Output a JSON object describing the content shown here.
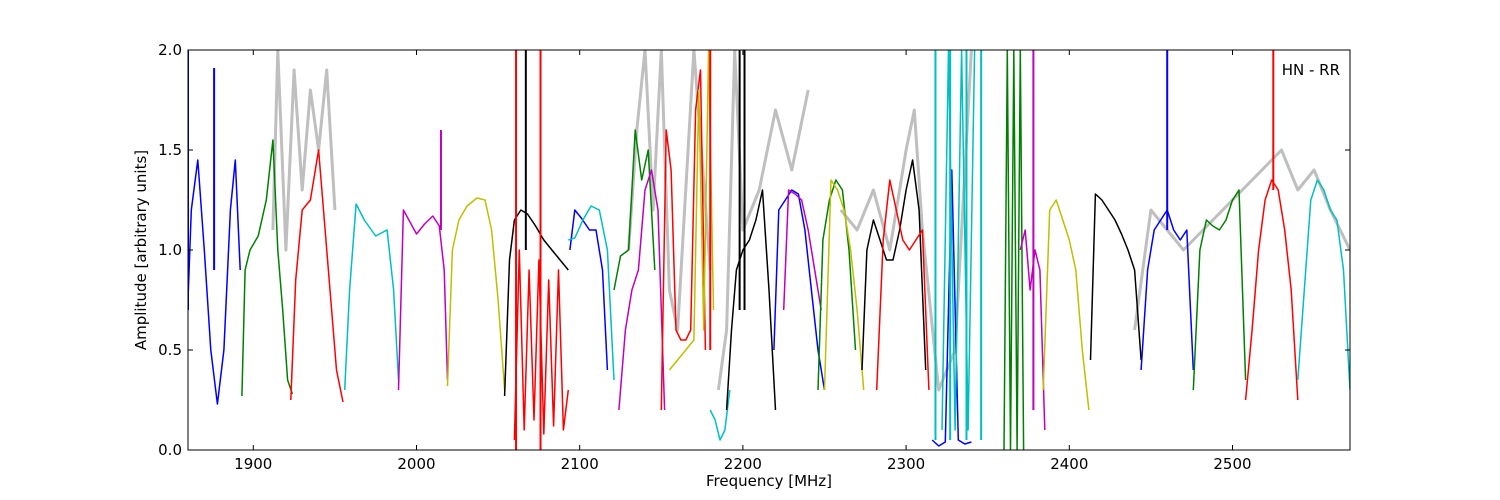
{
  "chart_data": {
    "type": "line",
    "xlabel": "Frequency [MHz]",
    "ylabel": "Amplitude [arbitrary units]",
    "annotation": "HN - RR",
    "xlim": [
      1860,
      2572
    ],
    "ylim": [
      0,
      2.0
    ],
    "grid": false,
    "x_ticks": [
      1900,
      2000,
      2100,
      2200,
      2300,
      2400,
      2500
    ],
    "y_ticks": [
      0.0,
      0.5,
      1.0,
      1.5,
      2.0
    ],
    "x_tick_labels": [
      "1900",
      "2000",
      "2100",
      "2200",
      "2300",
      "2400",
      "2500"
    ],
    "y_tick_labels": [
      "0.0",
      "0.5",
      "1.0",
      "1.5",
      "2.0"
    ],
    "colors": {
      "reference": "#bfbfbf",
      "blue": "#0000ff",
      "green": "#008000",
      "red": "#ff0000",
      "cyan": "#00bfbf",
      "magenta": "#bf00bf",
      "olive": "#bfbf00",
      "black": "#000000"
    },
    "series": [
      {
        "color": "reference",
        "x": [
          1912,
          1915,
          1920,
          1925,
          1930,
          1935,
          1940,
          1945,
          1950
        ],
        "y": [
          1.1,
          2.0,
          1.0,
          1.9,
          1.3,
          1.8,
          1.5,
          1.9,
          1.2
        ]
      },
      {
        "color": "reference",
        "x": [
          2130,
          2135,
          2140,
          2145,
          2150,
          2155,
          2160,
          2170,
          2180
        ],
        "y": [
          1.0,
          1.6,
          2.0,
          1.2,
          2.0,
          0.8,
          0.6,
          2.0,
          0.9
        ]
      },
      {
        "color": "reference",
        "x": [
          2185,
          2190,
          2195,
          2200,
          2210,
          2220,
          2230,
          2240
        ],
        "y": [
          0.3,
          0.6,
          2.0,
          1.1,
          1.3,
          1.7,
          1.4,
          1.8
        ]
      },
      {
        "color": "reference",
        "x": [
          2260,
          2270,
          2280,
          2290,
          2300,
          2305,
          2310,
          2320,
          2330,
          2340
        ],
        "y": [
          1.2,
          1.1,
          1.3,
          1.0,
          1.5,
          1.7,
          1.1,
          0.3,
          0.5,
          2.0
        ]
      },
      {
        "color": "reference",
        "x": [
          2440,
          2450,
          2460,
          2470,
          2530,
          2540,
          2550,
          2560,
          2572
        ],
        "y": [
          0.6,
          1.2,
          1.1,
          1.0,
          1.5,
          1.3,
          1.4,
          1.2,
          1.0
        ]
      },
      {
        "color": "blue",
        "x": [
          1860,
          1862,
          1866,
          1870,
          1874,
          1878,
          1882,
          1886,
          1889,
          1892
        ],
        "y": [
          0.75,
          1.2,
          1.45,
          1.0,
          0.5,
          0.23,
          0.5,
          1.2,
          1.45,
          0.9
        ]
      },
      {
        "color": "green",
        "x": [
          1893,
          1895,
          1898,
          1903,
          1908,
          1912,
          1915,
          1918,
          1921,
          1924
        ],
        "y": [
          0.27,
          0.9,
          1.0,
          1.07,
          1.25,
          1.55,
          1.0,
          0.7,
          0.35,
          0.28
        ]
      },
      {
        "color": "red",
        "x": [
          1923,
          1926,
          1930,
          1935,
          1940,
          1943,
          1947,
          1951,
          1955
        ],
        "y": [
          0.25,
          0.85,
          1.2,
          1.25,
          1.5,
          1.2,
          0.8,
          0.4,
          0.24
        ]
      },
      {
        "color": "cyan",
        "x": [
          1956,
          1959,
          1963,
          1968,
          1975,
          1982,
          1986,
          1989
        ],
        "y": [
          0.3,
          0.8,
          1.23,
          1.15,
          1.07,
          1.1,
          0.8,
          0.35
        ]
      },
      {
        "color": "magenta",
        "x": [
          1989,
          1992,
          1996,
          2000,
          2005,
          2010,
          2014,
          2017,
          2019
        ],
        "y": [
          0.3,
          1.2,
          1.14,
          1.08,
          1.13,
          1.17,
          1.12,
          0.9,
          0.35
        ]
      },
      {
        "color": "olive",
        "x": [
          2019,
          2022,
          2026,
          2031,
          2037,
          2042,
          2046,
          2050,
          2054
        ],
        "y": [
          0.32,
          1.0,
          1.15,
          1.22,
          1.26,
          1.25,
          1.1,
          0.75,
          0.3
        ]
      },
      {
        "color": "black",
        "x": [
          2054,
          2057,
          2060,
          2064,
          2068,
          2073,
          2078,
          2083,
          2088,
          2093
        ],
        "y": [
          0.27,
          0.95,
          1.15,
          1.2,
          1.18,
          1.12,
          1.05,
          1.0,
          0.95,
          0.9
        ]
      },
      {
        "color": "red",
        "x": [
          2060,
          2063,
          2066,
          2069,
          2072,
          2075,
          2078,
          2081,
          2084,
          2087,
          2090,
          2093
        ],
        "y": [
          0.05,
          1.0,
          0.1,
          0.9,
          0.15,
          0.95,
          0.08,
          0.85,
          0.12,
          0.9,
          0.1,
          0.3
        ]
      },
      {
        "color": "blue",
        "x": [
          2094,
          2097,
          2101,
          2106,
          2110,
          2114,
          2117
        ],
        "y": [
          1.0,
          1.2,
          1.16,
          1.1,
          1.1,
          0.9,
          0.4
        ]
      },
      {
        "color": "cyan",
        "x": [
          2093,
          2097,
          2102,
          2107,
          2112,
          2117,
          2121
        ],
        "y": [
          1.05,
          1.06,
          1.15,
          1.22,
          1.2,
          1.0,
          0.35
        ]
      },
      {
        "color": "green",
        "x": [
          2121,
          2125,
          2130,
          2134,
          2138,
          2142,
          2146
        ],
        "y": [
          0.8,
          0.97,
          1.0,
          1.6,
          1.35,
          1.5,
          0.9
        ]
      },
      {
        "color": "magenta",
        "x": [
          2124,
          2128,
          2132,
          2136,
          2140,
          2144,
          2148,
          2152
        ],
        "y": [
          0.2,
          0.6,
          0.8,
          0.9,
          1.3,
          1.4,
          1.2,
          0.2
        ]
      },
      {
        "color": "red",
        "x": [
          2150,
          2153,
          2156,
          2159,
          2162,
          2165,
          2168,
          2171,
          2174,
          2177
        ],
        "y": [
          0.2,
          1.6,
          1.4,
          0.6,
          0.55,
          0.55,
          0.6,
          1.7,
          1.9,
          0.5
        ]
      },
      {
        "color": "olive",
        "x": [
          2155,
          2160,
          2165,
          2170,
          2173,
          2176,
          2179,
          2182
        ],
        "y": [
          0.4,
          0.45,
          0.5,
          0.55,
          1.8,
          0.6,
          2.0,
          0.7
        ]
      },
      {
        "color": "cyan",
        "x": [
          2180,
          2183,
          2186,
          2189,
          2192
        ],
        "y": [
          0.2,
          0.15,
          0.05,
          0.1,
          0.3
        ]
      },
      {
        "color": "black",
        "x": [
          2190,
          2193,
          2196,
          2200,
          2204,
          2208,
          2212,
          2216,
          2220
        ],
        "y": [
          0.2,
          0.6,
          0.9,
          1.0,
          1.05,
          1.15,
          1.3,
          0.8,
          0.2
        ]
      },
      {
        "color": "blue",
        "x": [
          2219,
          2222,
          2226,
          2230,
          2234,
          2238,
          2242,
          2246,
          2250
        ],
        "y": [
          0.5,
          1.2,
          1.25,
          1.3,
          1.28,
          1.1,
          0.8,
          0.5,
          0.3
        ]
      },
      {
        "color": "magenta",
        "x": [
          2225,
          2228,
          2232,
          2236,
          2240,
          2244,
          2248
        ],
        "y": [
          0.7,
          1.3,
          1.28,
          1.25,
          1.1,
          0.9,
          0.7
        ]
      },
      {
        "color": "green",
        "x": [
          2246,
          2249,
          2253,
          2257,
          2261,
          2265,
          2269
        ],
        "y": [
          0.3,
          1.05,
          1.25,
          1.35,
          1.3,
          1.0,
          0.5
        ]
      },
      {
        "color": "olive",
        "x": [
          2250,
          2254,
          2258,
          2262,
          2266,
          2270,
          2274
        ],
        "y": [
          0.3,
          1.35,
          1.3,
          1.2,
          1.0,
          0.7,
          0.3
        ]
      },
      {
        "color": "black",
        "x": [
          2273,
          2276,
          2280,
          2284,
          2288,
          2292,
          2296,
          2300,
          2304,
          2308,
          2312
        ],
        "y": [
          0.4,
          1.0,
          1.15,
          1.05,
          0.95,
          0.95,
          1.1,
          1.3,
          1.45,
          1.2,
          0.4
        ]
      },
      {
        "color": "red",
        "x": [
          2282,
          2286,
          2290,
          2294,
          2298,
          2302,
          2306,
          2310,
          2314
        ],
        "y": [
          0.3,
          1.05,
          1.35,
          1.2,
          1.05,
          1.0,
          1.05,
          1.1,
          0.3
        ]
      },
      {
        "color": "blue",
        "x": [
          2316,
          2320,
          2324,
          2328,
          2332,
          2336,
          2340
        ],
        "y": [
          0.05,
          0.02,
          0.04,
          1.4,
          0.05,
          0.03,
          0.04
        ]
      },
      {
        "color": "cyan",
        "x": [
          2322,
          2326,
          2330,
          2334,
          2338,
          2342
        ],
        "y": [
          0.1,
          2.0,
          0.1,
          2.0,
          0.1,
          2.0
        ]
      },
      {
        "color": "green",
        "x": [
          2360,
          2362,
          2364,
          2366,
          2368,
          2370,
          2372
        ],
        "y": [
          0.0,
          2.0,
          0.0,
          2.0,
          0.0,
          2.0,
          0.0
        ]
      },
      {
        "color": "magenta",
        "x": [
          2370,
          2373,
          2376,
          2379,
          2382,
          2385
        ],
        "y": [
          1.0,
          1.1,
          0.8,
          1.0,
          0.9,
          0.1
        ]
      },
      {
        "color": "olive",
        "x": [
          2384,
          2388,
          2392,
          2396,
          2400,
          2404,
          2408,
          2412
        ],
        "y": [
          0.3,
          1.2,
          1.25,
          1.15,
          1.05,
          0.9,
          0.5,
          0.2
        ]
      },
      {
        "color": "black",
        "x": [
          2413,
          2416,
          2420,
          2424,
          2428,
          2432,
          2436,
          2440,
          2444
        ],
        "y": [
          0.45,
          1.28,
          1.25,
          1.2,
          1.15,
          1.08,
          1.0,
          0.9,
          0.45
        ]
      },
      {
        "color": "blue",
        "x": [
          2444,
          2448,
          2452,
          2456,
          2460,
          2464,
          2468,
          2472,
          2476
        ],
        "y": [
          0.4,
          0.9,
          1.1,
          1.15,
          1.2,
          1.1,
          1.05,
          1.1,
          0.4
        ]
      },
      {
        "color": "green",
        "x": [
          2476,
          2480,
          2484,
          2488,
          2492,
          2496,
          2500,
          2504,
          2508
        ],
        "y": [
          0.3,
          1.0,
          1.15,
          1.12,
          1.1,
          1.15,
          1.25,
          1.3,
          0.35
        ]
      },
      {
        "color": "red",
        "x": [
          2508,
          2512,
          2516,
          2520,
          2524,
          2528,
          2532,
          2536,
          2540
        ],
        "y": [
          0.25,
          0.6,
          1.0,
          1.25,
          1.35,
          1.3,
          1.1,
          0.8,
          0.25
        ]
      },
      {
        "color": "cyan",
        "x": [
          2540,
          2544,
          2548,
          2552,
          2556,
          2560,
          2564,
          2568,
          2572
        ],
        "y": [
          0.35,
          0.8,
          1.25,
          1.35,
          1.3,
          1.2,
          1.15,
          0.9,
          0.3
        ]
      }
    ],
    "spikes": [
      {
        "color": "blue",
        "x": 1860,
        "y_from": 0.7,
        "y_to": 2.0
      },
      {
        "color": "blue",
        "x": 1876,
        "y_from": 0.9,
        "y_to": 1.91
      },
      {
        "color": "magenta",
        "x": 2015,
        "y_from": 1.1,
        "y_to": 1.6
      },
      {
        "color": "red",
        "x": 2061,
        "y_from": 0.0,
        "y_to": 2.0
      },
      {
        "color": "black",
        "x": 2067,
        "y_from": 1.0,
        "y_to": 2.0
      },
      {
        "color": "red",
        "x": 2076,
        "y_from": 0.0,
        "y_to": 2.0
      },
      {
        "color": "red",
        "x": 2180,
        "y_from": 0.5,
        "y_to": 2.0
      },
      {
        "color": "black",
        "x": 2198,
        "y_from": 0.7,
        "y_to": 2.0
      },
      {
        "color": "black",
        "x": 2201,
        "y_from": 0.7,
        "y_to": 2.0
      },
      {
        "color": "cyan",
        "x": 2318,
        "y_from": 0.05,
        "y_to": 2.0
      },
      {
        "color": "cyan",
        "x": 2327,
        "y_from": 0.05,
        "y_to": 2.0
      },
      {
        "color": "cyan",
        "x": 2337,
        "y_from": 0.05,
        "y_to": 2.0
      },
      {
        "color": "cyan",
        "x": 2346,
        "y_from": 0.05,
        "y_to": 2.0
      },
      {
        "color": "magenta",
        "x": 2378,
        "y_from": 0.2,
        "y_to": 2.0
      },
      {
        "color": "blue",
        "x": 2460,
        "y_from": 1.1,
        "y_to": 2.0
      },
      {
        "color": "red",
        "x": 2525,
        "y_from": 1.3,
        "y_to": 2.0
      }
    ]
  }
}
